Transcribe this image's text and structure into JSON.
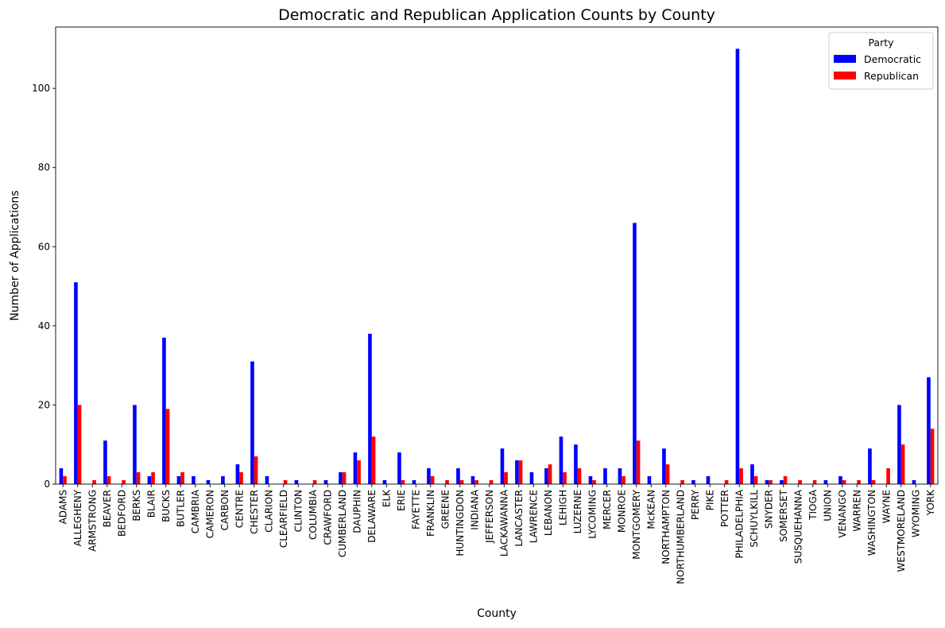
{
  "chart_data": {
    "type": "bar",
    "title": "Democratic and Republican Application Counts by County",
    "xlabel": "County",
    "ylabel": "Number of Applications",
    "ylim": [
      0,
      115.5
    ],
    "yticks": [
      0,
      20,
      40,
      60,
      80,
      100
    ],
    "grid": false,
    "legend": {
      "title": "Party",
      "placement": "top-right"
    },
    "categories": [
      "ADAMS",
      "ALLEGHENY",
      "ARMSTRONG",
      "BEAVER",
      "BEDFORD",
      "BERKS",
      "BLAIR",
      "BUCKS",
      "BUTLER",
      "CAMBRIA",
      "CAMERON",
      "CARBON",
      "CENTRE",
      "CHESTER",
      "CLARION",
      "CLEARFIELD",
      "CLINTON",
      "COLUMBIA",
      "CRAWFORD",
      "CUMBERLAND",
      "DAUPHIN",
      "DELAWARE",
      "ELK",
      "ERIE",
      "FAYETTE",
      "FRANKLIN",
      "GREENE",
      "HUNTINGDON",
      "INDIANA",
      "JEFFERSON",
      "LACKAWANNA",
      "LANCASTER",
      "LAWRENCE",
      "LEBANON",
      "LEHIGH",
      "LUZERNE",
      "LYCOMING",
      "MERCER",
      "MONROE",
      "MONTGOMERY",
      "McKEAN",
      "NORTHAMPTON",
      "NORTHUMBERLAND",
      "PERRY",
      "PIKE",
      "POTTER",
      "PHILADELPHIA",
      "SCHUYLKILL",
      "SNYDER",
      "SOMERSET",
      "SUSQUEHANNA",
      "TIOGA",
      "UNION",
      "VENANGO",
      "WARREN",
      "WASHINGTON",
      "WAYNE",
      "WESTMORELAND",
      "WYOMING",
      "YORK"
    ],
    "series": [
      {
        "name": "Democratic",
        "color": "#0000ff",
        "values": [
          4,
          51,
          0,
          11,
          0,
          20,
          2,
          37,
          2,
          2,
          1,
          2,
          5,
          31,
          2,
          0,
          1,
          0,
          1,
          3,
          8,
          38,
          1,
          8,
          1,
          4,
          0,
          4,
          2,
          0,
          9,
          6,
          3,
          4,
          12,
          10,
          2,
          4,
          4,
          66,
          2,
          9,
          0,
          1,
          2,
          0,
          110,
          5,
          1,
          1,
          0,
          0,
          1,
          2,
          0,
          9,
          0,
          20,
          1,
          27
        ]
      },
      {
        "name": "Republican",
        "color": "#ff0000",
        "values": [
          2,
          20,
          1,
          2,
          1,
          3,
          3,
          19,
          3,
          0,
          0,
          0,
          3,
          7,
          0,
          1,
          0,
          1,
          0,
          3,
          6,
          12,
          0,
          1,
          0,
          2,
          1,
          1,
          1,
          1,
          3,
          6,
          0,
          5,
          3,
          4,
          1,
          0,
          2,
          11,
          0,
          5,
          1,
          0,
          0,
          1,
          4,
          2,
          1,
          2,
          1,
          1,
          0,
          1,
          1,
          1,
          4,
          10,
          0,
          14
        ]
      }
    ]
  }
}
